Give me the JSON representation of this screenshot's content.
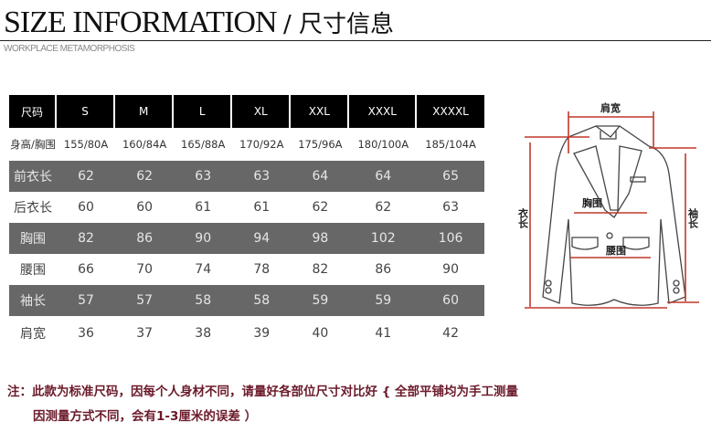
{
  "header": {
    "title": "SIZE INFORMATION",
    "title_cn": "/ 尺寸信息",
    "subtitle": "WORKPLACE METAMORPHOSIS"
  },
  "table": {
    "columns": [
      "尺码",
      "S",
      "M",
      "L",
      "XL",
      "XXL",
      "XXXL",
      "XXXXL"
    ],
    "rows": [
      {
        "label": "身高/胸围",
        "values": [
          "155/80A",
          "160/84A",
          "165/88A",
          "170/92A",
          "175/96A",
          "180/100A",
          "185/104A"
        ]
      },
      {
        "label": "前衣长",
        "values": [
          "62",
          "62",
          "63",
          "63",
          "64",
          "64",
          "65"
        ]
      },
      {
        "label": "后衣长",
        "values": [
          "60",
          "60",
          "61",
          "61",
          "62",
          "62",
          "63"
        ]
      },
      {
        "label": "胸围",
        "values": [
          "82",
          "86",
          "90",
          "94",
          "98",
          "102",
          "106"
        ]
      },
      {
        "label": "腰围",
        "values": [
          "66",
          "70",
          "74",
          "78",
          "82",
          "86",
          "90"
        ]
      },
      {
        "label": "袖长",
        "values": [
          "57",
          "57",
          "58",
          "58",
          "59",
          "59",
          "60"
        ]
      },
      {
        "label": "肩宽",
        "values": [
          "36",
          "37",
          "38",
          "39",
          "40",
          "41",
          "42"
        ]
      }
    ]
  },
  "diagram": {
    "shoulder": "肩宽",
    "chest": "胸围",
    "waist": "腰围",
    "length": "衣长",
    "sleeve": "袖长",
    "accent": "#c0392b"
  },
  "note": {
    "line1": "注：此款为标准尺码，因每个人身材不同，请量好各部位尺寸对比好 { 全部平铺均为手工测量",
    "line2": "因测量方式不同，会有1-3厘米的误差 ）",
    "color": "#6b1a2a"
  }
}
